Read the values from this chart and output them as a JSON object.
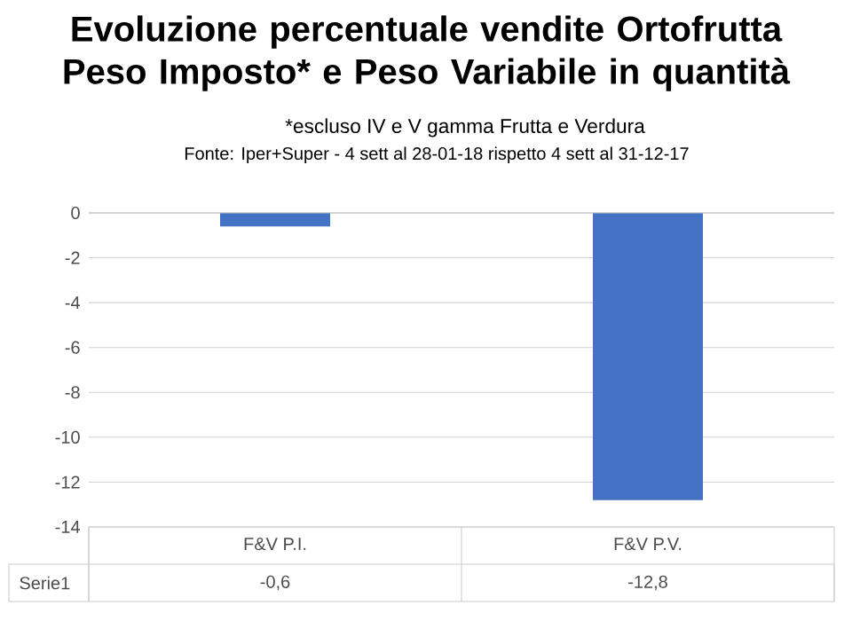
{
  "chart_data": {
    "type": "bar",
    "title": "Evoluzione percentuale vendite Ortofrutta Peso Imposto* e Peso Variabile in quantità",
    "subtitle": "*escluso  IV e V gamma Frutta e Verdura",
    "annotations": [
      "Fonte: Iper+Super - 4 sett al 28-01-18 rispetto 4 sett al 31-12-17"
    ],
    "categories": [
      "F&V P.I.",
      "F&V P.V."
    ],
    "series": [
      {
        "name": "Serie1",
        "color": "#4472c4",
        "values": [
          -0.6,
          -12.8
        ],
        "value_labels": [
          "-0,6",
          "-12,8"
        ]
      }
    ],
    "ylim": [
      -14,
      0
    ],
    "yticks": [
      0,
      -2,
      -4,
      -6,
      -8,
      -10,
      -12,
      -14
    ],
    "grid": "y"
  }
}
